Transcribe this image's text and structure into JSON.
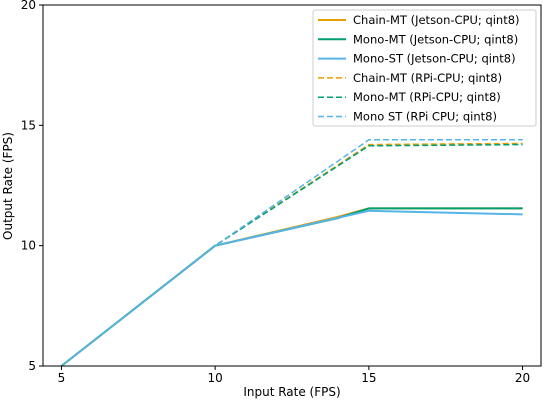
{
  "chart_data": {
    "type": "line",
    "title": "",
    "xlabel": "Input Rate (FPS)",
    "ylabel": "Output Rate (FPS)",
    "xlim": [
      4.4,
      20.6
    ],
    "ylim": [
      5,
      20
    ],
    "xticks": [
      5,
      10,
      15,
      20
    ],
    "yticks": [
      5,
      10,
      15,
      20
    ],
    "x_tick_labels": [
      "5",
      "10",
      "15",
      "20"
    ],
    "y_tick_labels": [
      "5",
      "10",
      "15",
      "20"
    ],
    "grid": false,
    "legend_position": "top-right",
    "series": [
      {
        "name": "Chain-MT (Jetson-CPU; qint8)",
        "color": "#E69F00",
        "dashed": false,
        "x": [
          5,
          10,
          14,
          15,
          20
        ],
        "y": [
          5.0,
          10.0,
          11.2,
          11.55,
          11.55
        ]
      },
      {
        "name": "Mono-MT (Jetson-CPU; qint8)",
        "color": "#009E73",
        "dashed": false,
        "x": [
          5,
          10,
          14,
          15,
          20
        ],
        "y": [
          5.0,
          10.0,
          11.15,
          11.55,
          11.55
        ]
      },
      {
        "name": "Mono-ST (Jetson-CPU; qint8)",
        "color": "#56B4E9",
        "dashed": false,
        "x": [
          5,
          10,
          15,
          20
        ],
        "y": [
          5.0,
          10.0,
          11.45,
          11.3
        ]
      },
      {
        "name": "Chain-MT (RPi-CPU; qint8)",
        "color": "#E69F00",
        "dashed": true,
        "x": [
          5,
          10,
          15,
          20
        ],
        "y": [
          5.0,
          10.0,
          14.2,
          14.25
        ]
      },
      {
        "name": "Mono-MT (RPi-CPU; qint8)",
        "color": "#009E73",
        "dashed": true,
        "x": [
          5,
          10,
          15,
          20
        ],
        "y": [
          5.0,
          10.0,
          14.15,
          14.2
        ]
      },
      {
        "name": "Mono ST (RPi CPU; qint8)",
        "color": "#56B4E9",
        "dashed": true,
        "x": [
          5,
          10,
          15,
          20
        ],
        "y": [
          5.0,
          10.0,
          14.4,
          14.4
        ]
      }
    ]
  }
}
